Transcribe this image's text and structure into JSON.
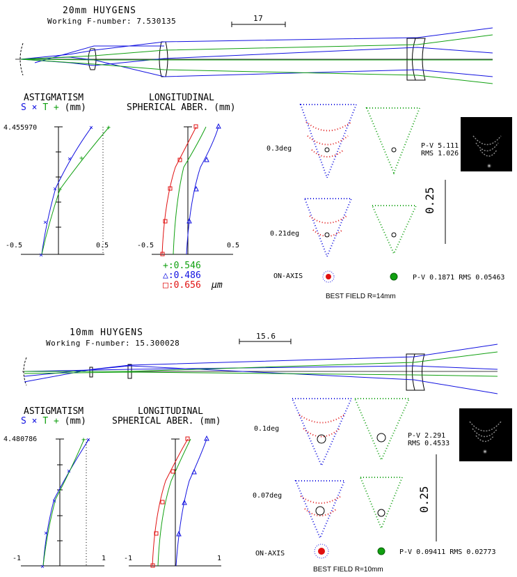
{
  "panels": [
    {
      "title": "20mm HUYGENS",
      "fnumber": "Working F-number: 7.530135",
      "scale_label": "17",
      "astig": {
        "header1": "ASTIGMATISM",
        "header_s": "S",
        "header_x": "×",
        "header_t": "T",
        "header_plus": "+",
        "header_unit": "(mm)",
        "ymax": "4.455970",
        "xmin": "-0.5",
        "xmax": "0.5"
      },
      "lsa": {
        "header1": "LONGITUDINAL",
        "header2": "SPHERICAL ABER. (mm)",
        "xmin": "-0.5",
        "xmax": "0.5"
      },
      "wavelengths": [
        {
          "mark": "+",
          "value": ":0.546",
          "color": "#10a010"
        },
        {
          "mark": "△",
          "value": ":0.486",
          "color": "#1010e0"
        },
        {
          "mark": "□",
          "value": ":0.656",
          "color": "#e01010"
        }
      ],
      "wl_unit": "μm",
      "spots": [
        {
          "label": "0.3deg"
        },
        {
          "label": "0.21deg"
        }
      ],
      "onaxis": "ON-AXIS",
      "pv_rms_1": {
        "pv": "P-V 5.111",
        "rms": "RMS 1.026"
      },
      "pv_rms_onaxis": "P-V 0.1871 RMS 0.05463",
      "scale_bar": "0.25",
      "best_field": "BEST FIELD R=14mm"
    },
    {
      "title": "10mm HUYGENS",
      "fnumber": "Working F-number: 15.300028",
      "scale_label": "15.6",
      "astig": {
        "header1": "ASTIGMATISM",
        "header_s": "S",
        "header_x": "×",
        "header_t": "T",
        "header_plus": "+",
        "header_unit": "(mm)",
        "ymax": "4.480786",
        "xmin": "-1",
        "xmax": "1"
      },
      "lsa": {
        "header1": "LONGITUDINAL",
        "header2": "SPHERICAL ABER. (mm)",
        "xmin": "-1",
        "xmax": "1"
      },
      "spots": [
        {
          "label": "0.1deg"
        },
        {
          "label": "0.07deg"
        }
      ],
      "onaxis": "ON-AXIS",
      "pv_rms_1": {
        "pv": "P-V 2.291",
        "rms": "RMS 0.4533"
      },
      "pv_rms_onaxis": "P-V 0.09411 RMS 0.02773",
      "scale_bar": "0.25",
      "best_field": "BEST FIELD R=10mm"
    }
  ],
  "colors": {
    "blue": "#1010e0",
    "green": "#10a010",
    "red": "#e01010"
  }
}
